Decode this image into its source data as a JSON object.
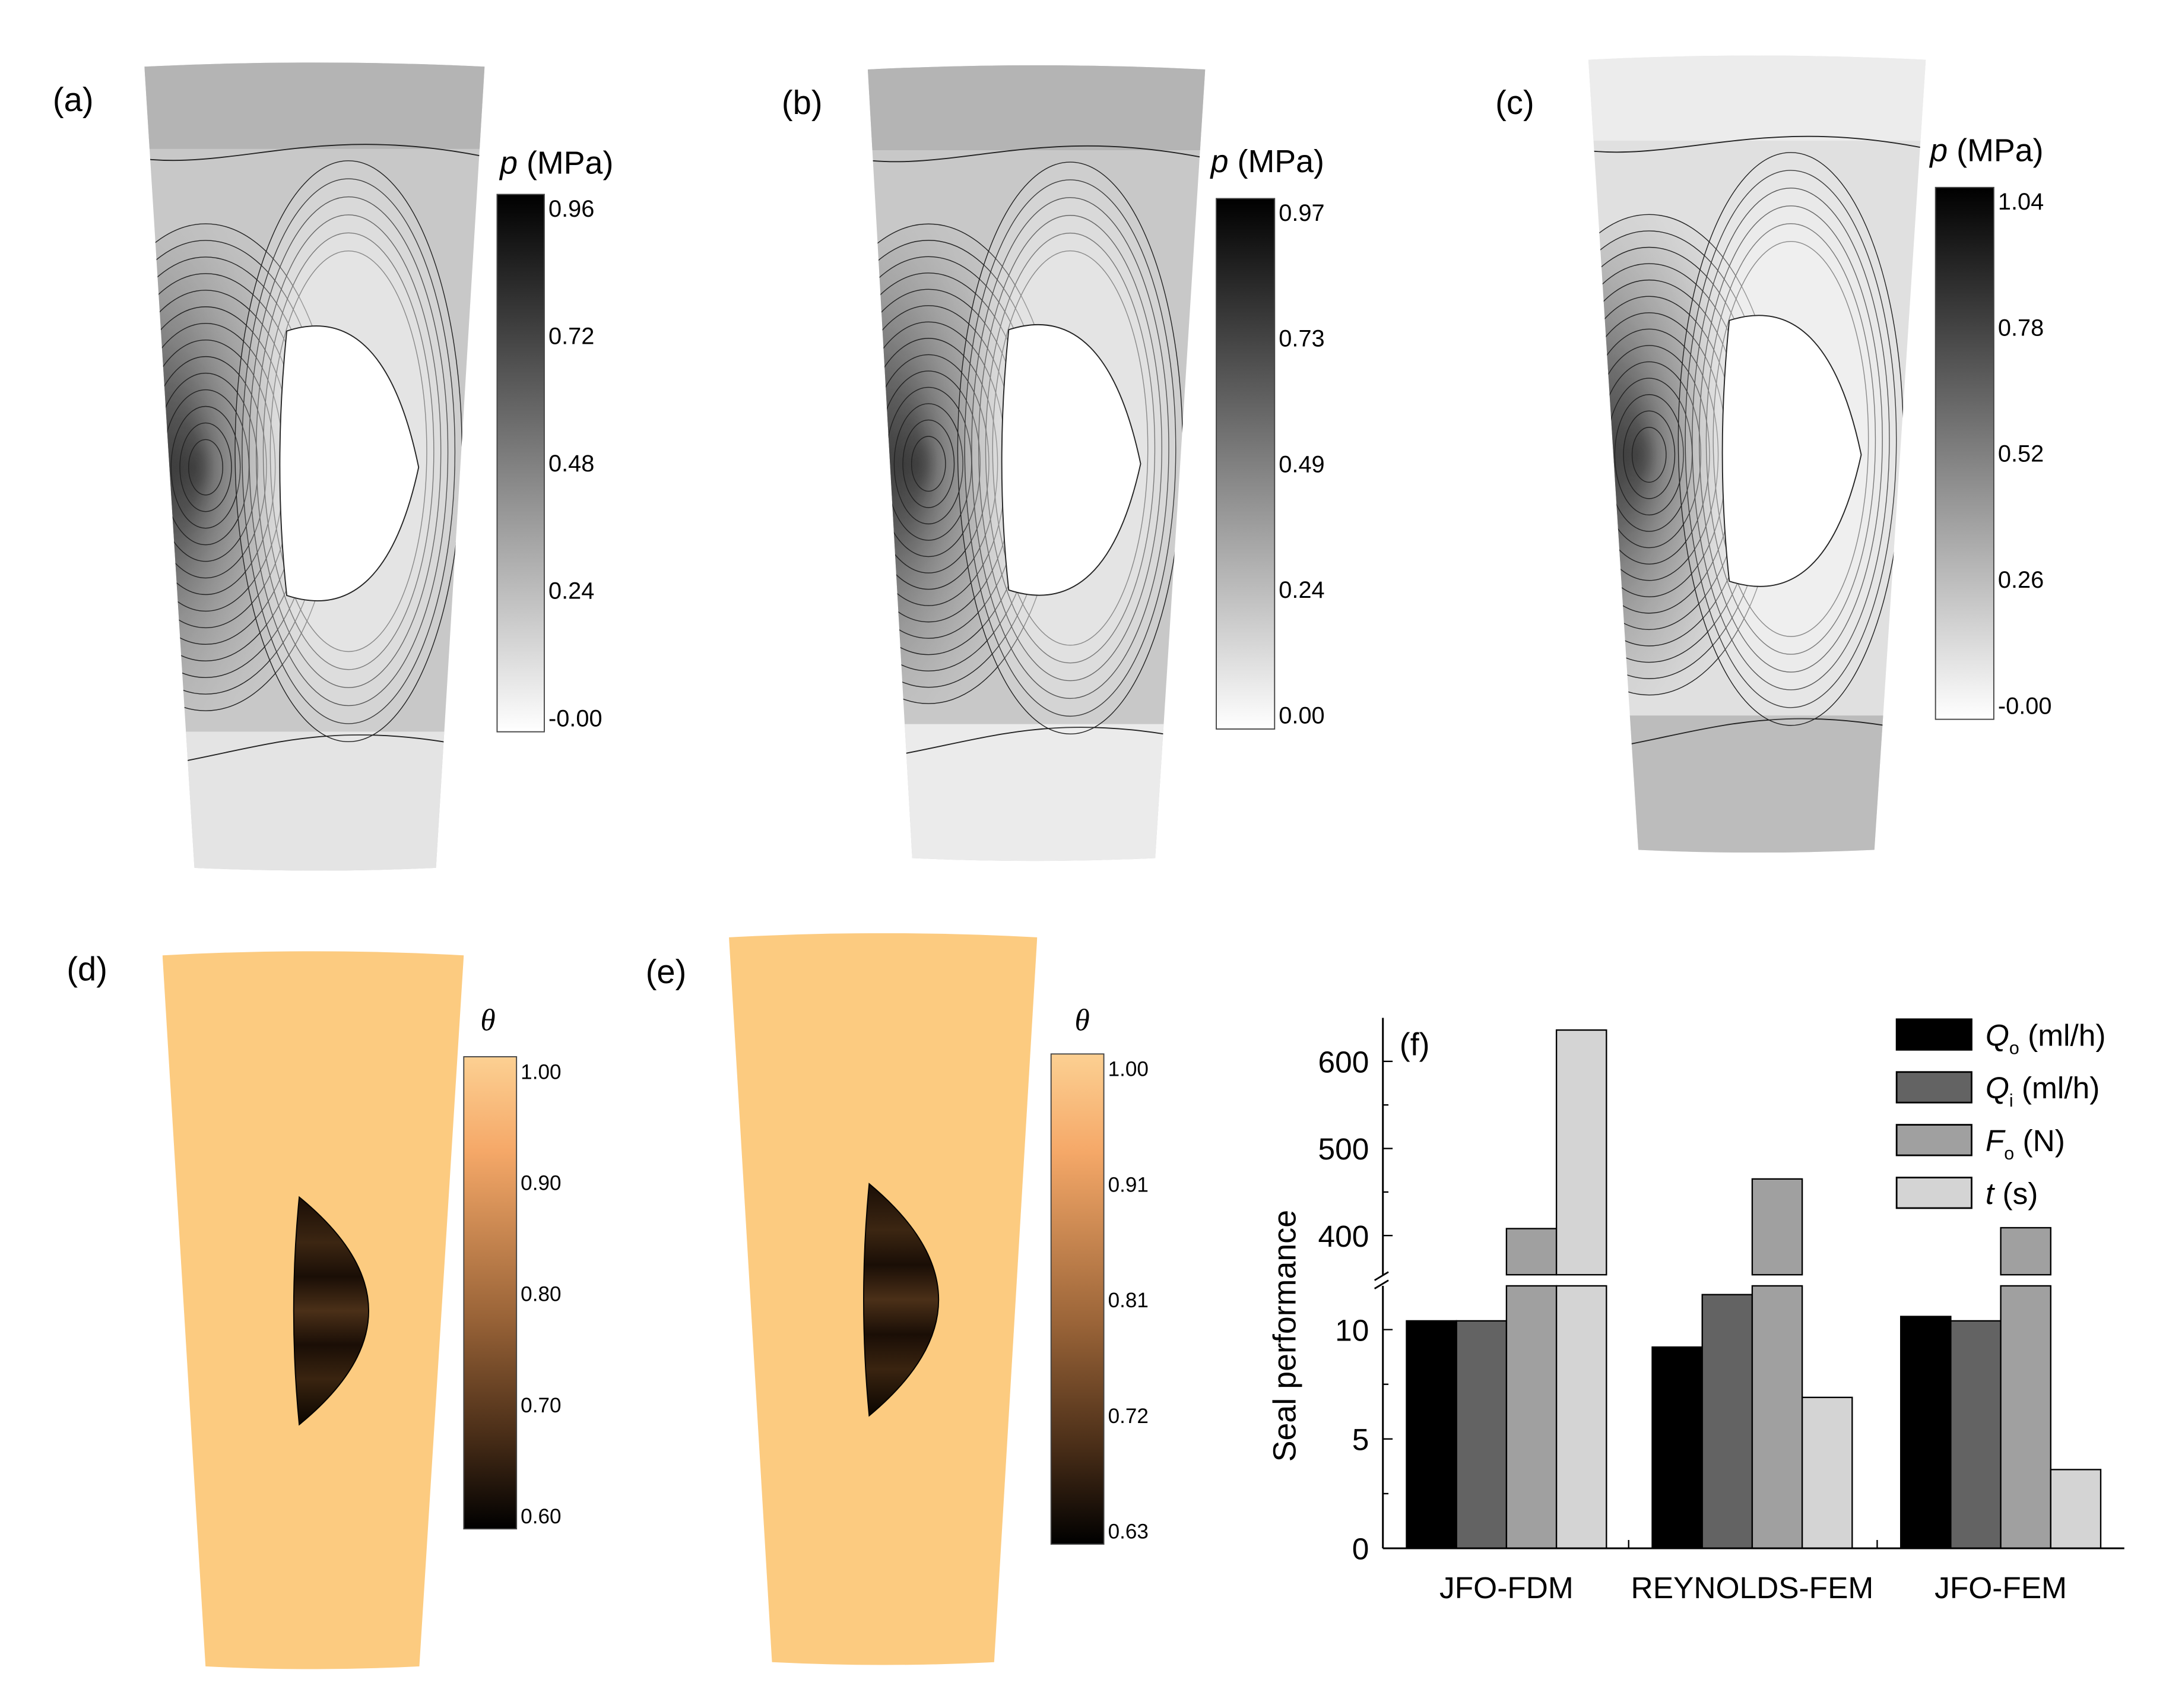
{
  "panels": [
    {
      "id": "a",
      "label": "(a)",
      "cbar_label_var": "p",
      "cbar_label_unit": "(MPa)",
      "ticks": [
        "0.96",
        "0.72",
        "0.48",
        "0.24",
        "-0.00"
      ],
      "shades": {
        "top": "#b4b4b4",
        "mid": "#c8c8c8",
        "low": "#d8d8d8",
        "bottom": "#e4e4e4"
      }
    },
    {
      "id": "b",
      "label": "(b)",
      "cbar_label_var": "p",
      "cbar_label_unit": "(MPa)",
      "ticks": [
        "0.97",
        "0.73",
        "0.49",
        "0.24",
        "0.00"
      ],
      "shades": {
        "top": "#b4b4b4",
        "mid": "#c8c8c8",
        "low": "#d4d4d4",
        "bottom": "#ebebeb"
      }
    },
    {
      "id": "c",
      "label": "(c)",
      "cbar_label_var": "p",
      "cbar_label_unit": "(MPa)",
      "ticks": [
        "1.04",
        "0.78",
        "0.52",
        "0.26",
        "-0.00"
      ],
      "shades": {
        "top": "#ececec",
        "mid": "#e0e0e0",
        "low": "#d2d2d2",
        "bottom": "#bcbcbc"
      }
    },
    {
      "id": "d",
      "label": "(d)",
      "cbar_label_var": "θ",
      "ticks": [
        "1.00",
        "0.90",
        "0.80",
        "0.70",
        "0.60"
      ],
      "fill": "#fccb80"
    },
    {
      "id": "e",
      "label": "(e)",
      "cbar_label_var": "θ",
      "ticks": [
        "1.00",
        "0.91",
        "0.81",
        "0.72",
        "0.63"
      ],
      "fill": "#fccb80"
    }
  ],
  "chart_data": {
    "type": "bar",
    "panel_label": "(f)",
    "ylabel": "Seal performance",
    "categories": [
      "JFO-FDM",
      "REYNOLDS-FEM",
      "JFO-FEM"
    ],
    "broken_axis": true,
    "ylim_lower": [
      0,
      12
    ],
    "ylim_upper": [
      355,
      650
    ],
    "yticks_lower": [
      "0",
      "5",
      "10"
    ],
    "yticks_upper": [
      "400",
      "500",
      "600"
    ],
    "legend_position": "top-right",
    "series": [
      {
        "name": "Q",
        "sub": "o",
        "unit": "(ml/h)",
        "color": "#000000",
        "values": [
          10.4,
          9.2,
          10.6
        ]
      },
      {
        "name": "Q",
        "sub": "i",
        "unit": "(ml/h)",
        "color": "#636363",
        "values": [
          10.4,
          11.6,
          10.4
        ]
      },
      {
        "name": "F",
        "sub": "o",
        "unit": "(N)",
        "color": "#a0a0a0",
        "values": [
          408,
          465,
          409
        ]
      },
      {
        "name": "t",
        "sub": "",
        "unit": "(s)",
        "color": "#d4d4d4",
        "values": [
          636,
          6.9,
          3.6
        ]
      }
    ]
  }
}
